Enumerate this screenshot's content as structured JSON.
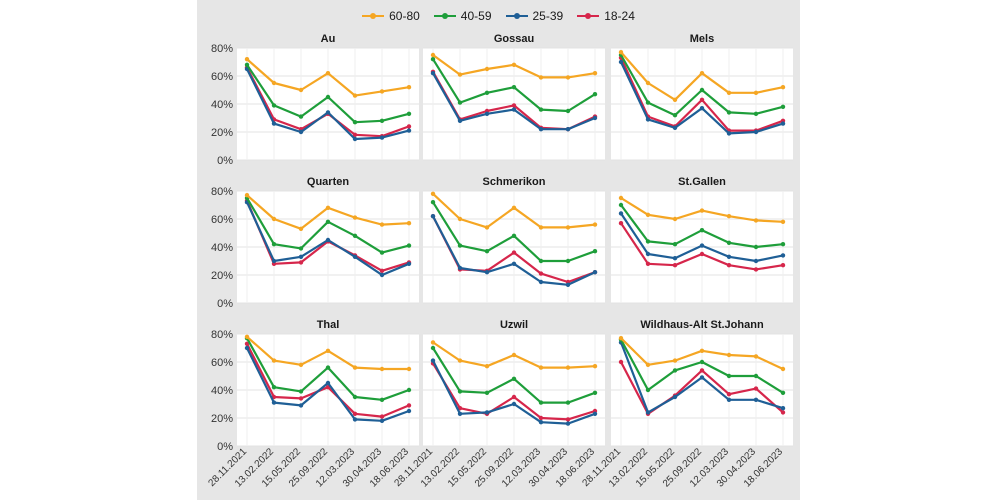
{
  "legend": {
    "items": [
      "60-80",
      "40-59",
      "25-39",
      "18-24"
    ]
  },
  "chart_data": {
    "type": "line",
    "layout": "facet-grid-3x3",
    "legend_position": "top",
    "grid": true,
    "ylim": [
      0,
      80
    ],
    "y_ticks": [
      "0%",
      "20%",
      "40%",
      "60%",
      "80%"
    ],
    "x": [
      "28.11.2021",
      "13.02.2022",
      "15.05.2022",
      "25.09.2022",
      "12.03.2023",
      "30.04.2023",
      "18.06.2023"
    ],
    "series_colors": {
      "60-80": "#F5A623",
      "40-59": "#1E9E3A",
      "25-39": "#1F5F96",
      "18-24": "#D6264B"
    },
    "panels": [
      {
        "title": "Au",
        "series": [
          {
            "name": "60-80",
            "values": [
              72,
              55,
              50,
              62,
              46,
              49,
              52
            ]
          },
          {
            "name": "40-59",
            "values": [
              68,
              39,
              31,
              45,
              27,
              28,
              33
            ]
          },
          {
            "name": "25-39",
            "values": [
              65,
              26,
              20,
              34,
              15,
              16,
              21
            ]
          },
          {
            "name": "18-24",
            "values": [
              66,
              29,
              22,
              33,
              18,
              17,
              24
            ]
          }
        ]
      },
      {
        "title": "Gossau",
        "series": [
          {
            "name": "60-80",
            "values": [
              75,
              61,
              65,
              68,
              59,
              59,
              62
            ]
          },
          {
            "name": "40-59",
            "values": [
              72,
              41,
              48,
              52,
              36,
              35,
              47
            ]
          },
          {
            "name": "25-39",
            "values": [
              62,
              28,
              33,
              36,
              22,
              22,
              30
            ]
          },
          {
            "name": "18-24",
            "values": [
              63,
              29,
              35,
              39,
              23,
              22,
              31
            ]
          }
        ]
      },
      {
        "title": "Mels",
        "series": [
          {
            "name": "60-80",
            "values": [
              77,
              55,
              43,
              62,
              48,
              48,
              52
            ]
          },
          {
            "name": "40-59",
            "values": [
              75,
              41,
              32,
              50,
              34,
              33,
              38
            ]
          },
          {
            "name": "25-39",
            "values": [
              70,
              29,
              23,
              37,
              19,
              20,
              26
            ]
          },
          {
            "name": "18-24",
            "values": [
              73,
              31,
              24,
              43,
              21,
              21,
              28
            ]
          }
        ]
      },
      {
        "title": "Quarten",
        "series": [
          {
            "name": "60-80",
            "values": [
              77,
              60,
              53,
              68,
              61,
              56,
              57
            ]
          },
          {
            "name": "40-59",
            "values": [
              75,
              42,
              39,
              58,
              48,
              36,
              41
            ]
          },
          {
            "name": "25-39",
            "values": [
              72,
              30,
              33,
              45,
              33,
              20,
              28
            ]
          },
          {
            "name": "18-24",
            "values": [
              73,
              28,
              29,
              44,
              34,
              23,
              29
            ]
          }
        ]
      },
      {
        "title": "Schmerikon",
        "series": [
          {
            "name": "60-80",
            "values": [
              78,
              60,
              54,
              68,
              54,
              54,
              56
            ]
          },
          {
            "name": "40-59",
            "values": [
              72,
              41,
              37,
              48,
              30,
              30,
              37
            ]
          },
          {
            "name": "25-39",
            "values": [
              62,
              25,
              22,
              28,
              15,
              13,
              22
            ]
          },
          {
            "name": "18-24",
            "values": [
              62,
              24,
              23,
              36,
              21,
              15,
              22
            ]
          }
        ]
      },
      {
        "title": "St.Gallen",
        "series": [
          {
            "name": "60-80",
            "values": [
              75,
              63,
              60,
              66,
              62,
              59,
              58
            ]
          },
          {
            "name": "40-59",
            "values": [
              70,
              44,
              42,
              52,
              43,
              40,
              42
            ]
          },
          {
            "name": "25-39",
            "values": [
              64,
              35,
              32,
              41,
              33,
              30,
              34
            ]
          },
          {
            "name": "18-24",
            "values": [
              57,
              28,
              27,
              35,
              27,
              24,
              27
            ]
          }
        ]
      },
      {
        "title": "Thal",
        "series": [
          {
            "name": "60-80",
            "values": [
              78,
              61,
              58,
              68,
              56,
              55,
              55
            ]
          },
          {
            "name": "40-59",
            "values": [
              77,
              42,
              39,
              56,
              35,
              33,
              40
            ]
          },
          {
            "name": "25-39",
            "values": [
              70,
              31,
              29,
              45,
              19,
              18,
              25
            ]
          },
          {
            "name": "18-24",
            "values": [
              73,
              35,
              34,
              42,
              23,
              21,
              29
            ]
          }
        ]
      },
      {
        "title": "Uzwil",
        "series": [
          {
            "name": "60-80",
            "values": [
              74,
              61,
              57,
              65,
              56,
              56,
              57
            ]
          },
          {
            "name": "40-59",
            "values": [
              70,
              39,
              38,
              48,
              31,
              31,
              38
            ]
          },
          {
            "name": "25-39",
            "values": [
              61,
              23,
              24,
              30,
              17,
              16,
              23
            ]
          },
          {
            "name": "18-24",
            "values": [
              59,
              27,
              23,
              35,
              20,
              19,
              25
            ]
          }
        ]
      },
      {
        "title": "Wildhaus-Alt St.Johann",
        "series": [
          {
            "name": "60-80",
            "values": [
              77,
              58,
              61,
              68,
              65,
              64,
              55
            ]
          },
          {
            "name": "40-59",
            "values": [
              76,
              40,
              54,
              60,
              50,
              50,
              38
            ]
          },
          {
            "name": "25-39",
            "values": [
              74,
              24,
              35,
              49,
              33,
              33,
              27
            ]
          },
          {
            "name": "18-24",
            "values": [
              60,
              23,
              36,
              54,
              37,
              41,
              24
            ]
          }
        ]
      }
    ]
  }
}
